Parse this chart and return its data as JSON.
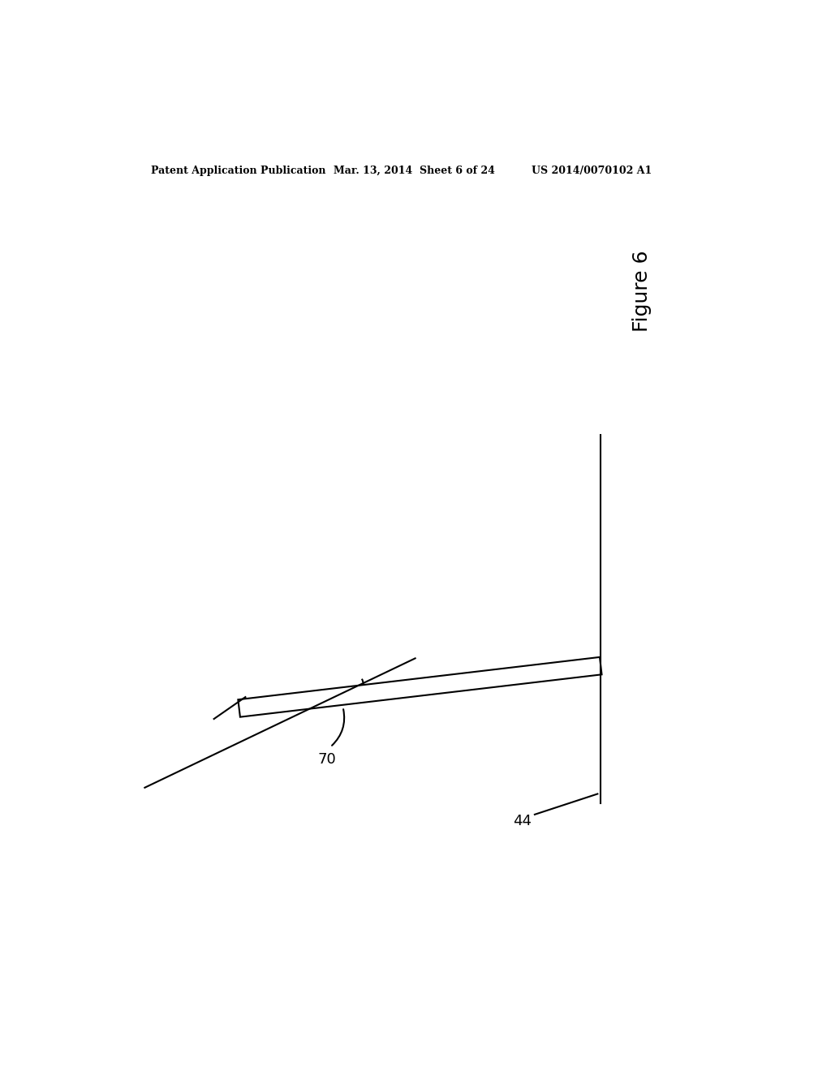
{
  "background_color": "#ffffff",
  "header_left": "Patent Application Publication",
  "header_mid": "Mar. 13, 2014  Sheet 6 of 24",
  "header_right": "US 2014/0070102 A1",
  "figure_label": "Figure 6",
  "label_44": "44",
  "label_70": "70",
  "line_color": "#000000",
  "line_width": 1.5
}
